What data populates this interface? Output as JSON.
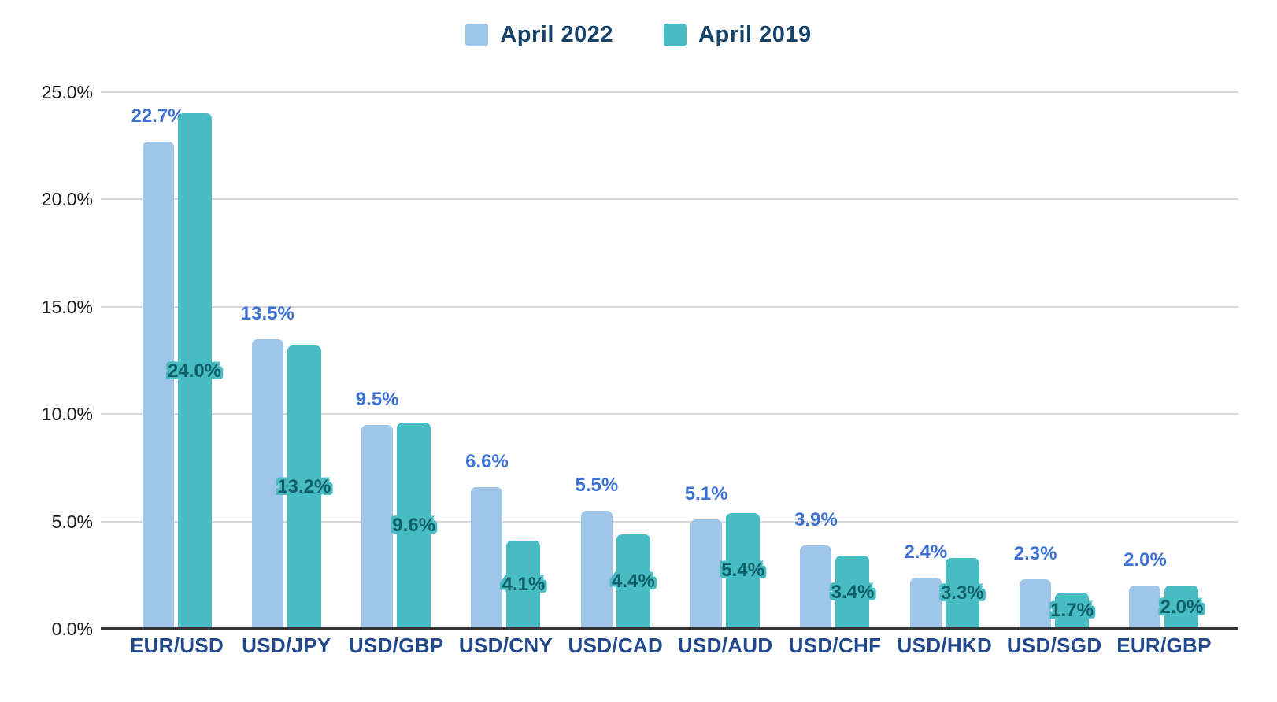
{
  "legend": {
    "items": [
      {
        "label": "April 2022",
        "color": "#9fc5e8"
      },
      {
        "label": "April 2019",
        "color": "#48bcc3"
      }
    ]
  },
  "chart_data": {
    "type": "bar",
    "title": "",
    "categories": [
      "EUR/USD",
      "USD/JPY",
      "USD/GBP",
      "USD/CNY",
      "USD/CAD",
      "USD/AUD",
      "USD/CHF",
      "USD/HKD",
      "USD/SGD",
      "EUR/GBP"
    ],
    "series": [
      {
        "name": "April 2022",
        "color": "#9fc5e8",
        "label_color": "#3e72d2",
        "values": [
          22.7,
          13.5,
          9.5,
          6.6,
          5.5,
          5.1,
          3.9,
          2.4,
          2.3,
          2.0
        ],
        "data_labels": [
          "22.7%",
          "13.5%",
          "9.5%",
          "6.6%",
          "5.5%",
          "5.1%",
          "3.9%",
          "2.4%",
          "2.3%",
          "2.0%"
        ]
      },
      {
        "name": "April 2019",
        "color": "#48bcc3",
        "label_color": "#0f5e68",
        "values": [
          24.0,
          13.2,
          9.6,
          4.1,
          4.4,
          5.4,
          3.4,
          3.3,
          1.7,
          2.0
        ],
        "data_labels": [
          "24.0%",
          "13.2%",
          "9.6%",
          "4.1%",
          "4.4%",
          "5.4%",
          "3.4%",
          "3.3%",
          "1.7%",
          "2.0%"
        ]
      }
    ],
    "xlabel": "",
    "ylabel": "",
    "ylim": [
      0,
      25
    ],
    "y_tick_labels": [
      "0.0%",
      "5.0%",
      "10.0%",
      "15.0%",
      "20.0%",
      "25.0%"
    ],
    "y_tick_values": [
      0,
      5,
      10,
      15,
      20,
      25
    ],
    "grid": true,
    "legend_position": "top",
    "value_suffix": "%",
    "gridline_color": "#d9d9d9",
    "baseline_color": "#333333",
    "axis_label_color": "#21498c",
    "tick_label_color": "#1c1c1c"
  }
}
